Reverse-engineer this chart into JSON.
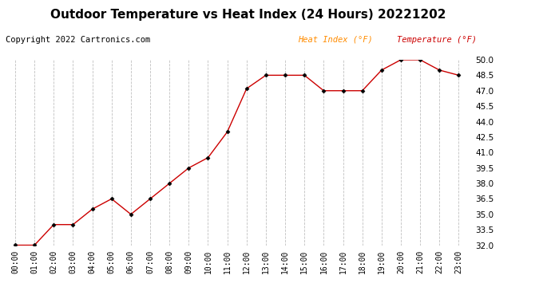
{
  "title": "Outdoor Temperature vs Heat Index (24 Hours) 20221202",
  "copyright_text": "Copyright 2022 Cartronics.com",
  "legend_heat": "Heat Index (°F)",
  "legend_temp": "Temperature (°F)",
  "x_labels": [
    "00:00",
    "01:00",
    "02:00",
    "03:00",
    "04:00",
    "05:00",
    "06:00",
    "07:00",
    "08:00",
    "09:00",
    "10:00",
    "11:00",
    "12:00",
    "13:00",
    "14:00",
    "15:00",
    "16:00",
    "17:00",
    "18:00",
    "19:00",
    "20:00",
    "21:00",
    "22:00",
    "23:00"
  ],
  "temperature": [
    32.0,
    32.0,
    34.0,
    34.0,
    35.5,
    36.5,
    35.0,
    36.5,
    38.0,
    39.5,
    40.5,
    43.0,
    47.2,
    48.5,
    48.5,
    48.5,
    47.0,
    47.0,
    47.0,
    49.0,
    50.0,
    50.0,
    49.0,
    48.5
  ],
  "ylim_min": 32.0,
  "ylim_max": 50.0,
  "yticks": [
    32.0,
    33.5,
    35.0,
    36.5,
    38.0,
    39.5,
    41.0,
    42.5,
    44.0,
    45.5,
    47.0,
    48.5,
    50.0
  ],
  "line_color": "#cc0000",
  "marker_color": "#000000",
  "grid_color": "#c0c0c0",
  "title_color": "#000000",
  "copyright_color": "#000000",
  "legend_color_heat": "#ff8c00",
  "legend_color_temp": "#cc0000",
  "bg_color": "#ffffff",
  "title_fontsize": 11,
  "copyright_fontsize": 7.5,
  "legend_fontsize": 7.5,
  "axis_fontsize": 7,
  "ytick_fontsize": 7.5
}
